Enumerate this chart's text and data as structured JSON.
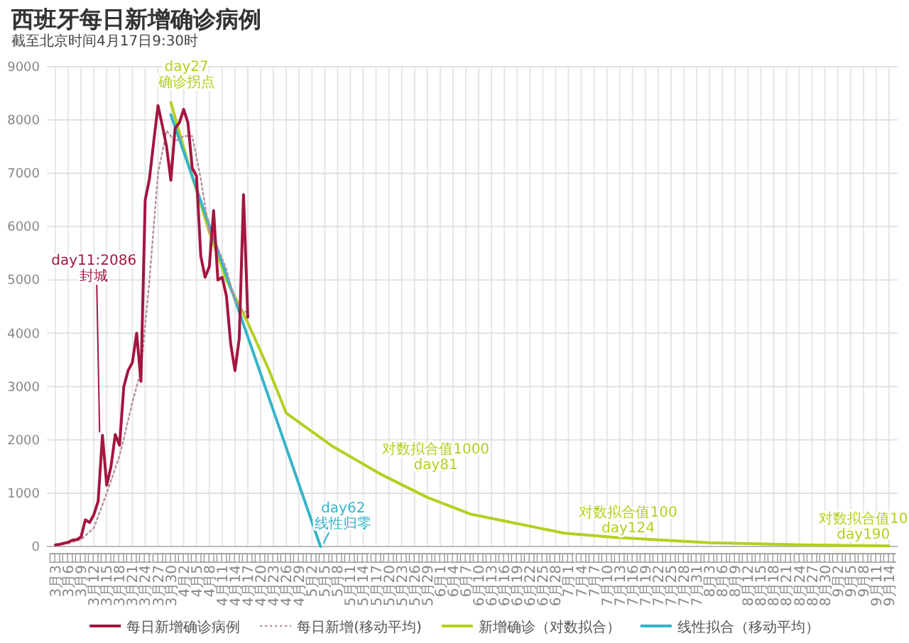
{
  "chart_data": {
    "type": "line",
    "title": "西班牙每日新增确诊病例",
    "subtitle": "截至北京时间4月17日9:30时",
    "xlim": [
      "--03-01",
      "--09-16"
    ],
    "ylim": [
      0,
      9000
    ],
    "yticks": [
      0,
      1000,
      2000,
      3000,
      4000,
      5000,
      6000,
      7000,
      8000,
      9000
    ],
    "xticks": [
      {
        "value": "--03-03",
        "label": "3月3日"
      },
      {
        "value": "--03-06",
        "label": "3月6日"
      },
      {
        "value": "--03-09",
        "label": "3月9日"
      },
      {
        "value": "--03-12",
        "label": "3月12日"
      },
      {
        "value": "--03-15",
        "label": "3月15日"
      },
      {
        "value": "--03-18",
        "label": "3月18日"
      },
      {
        "value": "--03-21",
        "label": "3月21日"
      },
      {
        "value": "--03-24",
        "label": "3月24日"
      },
      {
        "value": "--03-27",
        "label": "3月27日"
      },
      {
        "value": "--03-30",
        "label": "3月30日"
      },
      {
        "value": "--04-02",
        "label": "4月2日"
      },
      {
        "value": "--04-05",
        "label": "4月5日"
      },
      {
        "value": "--04-08",
        "label": "4月8日"
      },
      {
        "value": "--04-11",
        "label": "4月11日"
      },
      {
        "value": "--04-14",
        "label": "4月14日"
      },
      {
        "value": "--04-17",
        "label": "4月17日"
      },
      {
        "value": "--04-20",
        "label": "4月20日"
      },
      {
        "value": "--04-23",
        "label": "4月23日"
      },
      {
        "value": "--04-26",
        "label": "4月26日"
      },
      {
        "value": "--04-29",
        "label": "4月29日"
      },
      {
        "value": "--05-02",
        "label": "5月2日"
      },
      {
        "value": "--05-05",
        "label": "5月5日"
      },
      {
        "value": "--05-08",
        "label": "5月8日"
      },
      {
        "value": "--05-11",
        "label": "5月11日"
      },
      {
        "value": "--05-14",
        "label": "5月14日"
      },
      {
        "value": "--05-17",
        "label": "5月17日"
      },
      {
        "value": "--05-20",
        "label": "5月20日"
      },
      {
        "value": "--05-23",
        "label": "5月23日"
      },
      {
        "value": "--05-26",
        "label": "5月26日"
      },
      {
        "value": "--05-29",
        "label": "5月29日"
      },
      {
        "value": "--06-01",
        "label": "6月1日"
      },
      {
        "value": "--06-04",
        "label": "6月4日"
      },
      {
        "value": "--06-07",
        "label": "6月7日"
      },
      {
        "value": "--06-10",
        "label": "6月10日"
      },
      {
        "value": "--06-13",
        "label": "6月13日"
      },
      {
        "value": "--06-16",
        "label": "6月16日"
      },
      {
        "value": "--06-19",
        "label": "6月19日"
      },
      {
        "value": "--06-22",
        "label": "6月22日"
      },
      {
        "value": "--06-25",
        "label": "6月25日"
      },
      {
        "value": "--06-28",
        "label": "6月28日"
      },
      {
        "value": "--07-01",
        "label": "7月1日"
      },
      {
        "value": "--07-04",
        "label": "7月4日"
      },
      {
        "value": "--07-07",
        "label": "7月7日"
      },
      {
        "value": "--07-10",
        "label": "7月10日"
      },
      {
        "value": "--07-13",
        "label": "7月13日"
      },
      {
        "value": "--07-16",
        "label": "7月16日"
      },
      {
        "value": "--07-19",
        "label": "7月19日"
      },
      {
        "value": "--07-22",
        "label": "7月22日"
      },
      {
        "value": "--07-25",
        "label": "7月25日"
      },
      {
        "value": "--07-28",
        "label": "7月28日"
      },
      {
        "value": "--07-31",
        "label": "7月31日"
      },
      {
        "value": "--08-03",
        "label": "8月3日"
      },
      {
        "value": "--08-06",
        "label": "8月6日"
      },
      {
        "value": "--08-09",
        "label": "8月9日"
      },
      {
        "value": "--08-12",
        "label": "8月12日"
      },
      {
        "value": "--08-15",
        "label": "8月15日"
      },
      {
        "value": "--08-18",
        "label": "8月18日"
      },
      {
        "value": "--08-21",
        "label": "8月21日"
      },
      {
        "value": "--08-24",
        "label": "8月24日"
      },
      {
        "value": "--08-27",
        "label": "8月27日"
      },
      {
        "value": "--08-30",
        "label": "8月30日"
      },
      {
        "value": "--09-02",
        "label": "9月2日"
      },
      {
        "value": "--09-05",
        "label": "9月5日"
      },
      {
        "value": "--09-08",
        "label": "9月8日"
      },
      {
        "value": "--09-11",
        "label": "9月11日"
      },
      {
        "value": "--09-14",
        "label": "9月14日"
      }
    ],
    "grid": true,
    "legend": "bottom",
    "series": [
      {
        "name": "每日新增确诊病例",
        "color": "#a3163f",
        "line_style": "solid",
        "x": [
          "--03-03",
          "--03-04",
          "--03-05",
          "--03-06",
          "--03-07",
          "--03-08",
          "--03-09",
          "--03-10",
          "--03-11",
          "--03-12",
          "--03-13",
          "--03-14",
          "--03-15",
          "--03-16",
          "--03-17",
          "--03-18",
          "--03-19",
          "--03-20",
          "--03-21",
          "--03-22",
          "--03-23",
          "--03-24",
          "--03-25",
          "--03-26",
          "--03-27",
          "--03-28",
          "--03-29",
          "--03-30",
          "--03-31",
          "--04-01",
          "--04-02",
          "--04-03",
          "--04-04",
          "--04-05",
          "--04-06",
          "--04-07",
          "--04-08",
          "--04-09",
          "--04-10",
          "--04-11",
          "--04-12",
          "--04-13",
          "--04-14",
          "--04-15",
          "--04-16",
          "--04-17"
        ],
        "values": [
          30,
          40,
          60,
          80,
          120,
          130,
          180,
          500,
          450,
          600,
          850,
          2086,
          1150,
          1500,
          2100,
          1900,
          3000,
          3300,
          3450,
          4000,
          3100,
          6500,
          6900,
          7600,
          8270,
          7900,
          7500,
          6870,
          7850,
          7950,
          8200,
          7950,
          7100,
          6950,
          5450,
          5050,
          5250,
          6300,
          5000,
          5050,
          4700,
          3800,
          3300,
          3900,
          6600,
          4300
        ]
      },
      {
        "name": "每日新增(移动平均)",
        "color": "#b7909c",
        "line_style": "dotted",
        "x": [
          "--03-06",
          "--03-09",
          "--03-12",
          "--03-15",
          "--03-18",
          "--03-21",
          "--03-23",
          "--03-25",
          "--03-27",
          "--03-29",
          "--03-31",
          "--04-02",
          "--04-04",
          "--04-06",
          "--04-08",
          "--04-10",
          "--04-12",
          "--04-14",
          "--04-16",
          "--04-17"
        ],
        "values": [
          60,
          130,
          350,
          1000,
          1700,
          2700,
          3300,
          5000,
          7000,
          7800,
          7600,
          7700,
          7700,
          6900,
          5900,
          5600,
          5200,
          4600,
          4400,
          4400
        ]
      },
      {
        "name": "新增确诊（对数拟合）",
        "color": "#b5cf1f",
        "line_style": "solid",
        "x": [
          "--03-30",
          "--04-03",
          "--04-08",
          "--04-12",
          "--04-17",
          "--04-22",
          "--04-26",
          "--05-07",
          "--05-18",
          "--05-29",
          "--06-08",
          "--06-19",
          "--06-30",
          "--07-12",
          "--07-23",
          "--08-03",
          "--08-14",
          "--08-25",
          "--09-05",
          "--09-14"
        ],
        "values": [
          8330,
          7200,
          5900,
          5000,
          4200,
          3300,
          2500,
          1870,
          1360,
          920,
          610,
          430,
          250,
          170,
          120,
          70,
          50,
          30,
          20,
          10
        ]
      },
      {
        "name": "线性拟合（移动平均）",
        "color": "#35b4c8",
        "line_style": "solid",
        "x": [
          "--03-30",
          "--05-04"
        ],
        "values": [
          8100,
          0
        ]
      }
    ],
    "annotations": [
      {
        "text": "day11:2086\n封城",
        "x": "--03-14",
        "y": 2086
      },
      {
        "text": "day27\n确诊拐点",
        "x": "--03-30",
        "y": 8330
      },
      {
        "text": "day62\n线性归零",
        "x": "--05-04",
        "y": 0
      },
      {
        "text": "对数拟合值1000\nday81",
        "x": "--05-23",
        "y": 1000
      },
      {
        "text": "对数拟合值100\nday124",
        "x": "--07-05",
        "y": 100
      },
      {
        "text": "对数拟合值10\nday190",
        "x": "--09-09",
        "y": 10
      }
    ]
  }
}
